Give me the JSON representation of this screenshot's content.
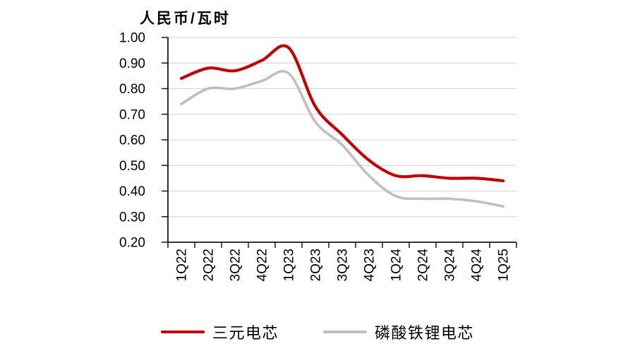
{
  "chart_data": {
    "type": "line",
    "title": "人民币/瓦时",
    "categories": [
      "1Q22",
      "2Q22",
      "3Q22",
      "4Q22",
      "1Q23",
      "2Q23",
      "3Q23",
      "4Q23",
      "1Q24",
      "2Q24",
      "3Q24",
      "4Q24",
      "1Q25"
    ],
    "series": [
      {
        "name": "三元电芯",
        "color": "#C00000",
        "values": [
          0.84,
          0.88,
          0.87,
          0.91,
          0.96,
          0.73,
          0.62,
          0.52,
          0.46,
          0.46,
          0.45,
          0.45,
          0.44
        ]
      },
      {
        "name": "磷酸铁锂电芯",
        "color": "#BFBFBF",
        "values": [
          0.74,
          0.8,
          0.8,
          0.83,
          0.86,
          0.67,
          0.58,
          0.46,
          0.38,
          0.37,
          0.37,
          0.36,
          0.34
        ]
      }
    ],
    "ylim": [
      0.2,
      1.0
    ],
    "y_ticks": [
      "1.00",
      "0.90",
      "0.80",
      "0.70",
      "0.60",
      "0.50",
      "0.40",
      "0.30",
      "0.20"
    ],
    "xlabel": "",
    "ylabel": "",
    "grid": true,
    "smoothed": true,
    "legend_position": "bottom"
  },
  "colors": {
    "background": "#FFFFFF",
    "gridline": "#D9D9D9",
    "axis": "#1A1A1A",
    "tick_text": "#000000",
    "series_red": "#C00000",
    "series_gray": "#BFBFBF"
  }
}
